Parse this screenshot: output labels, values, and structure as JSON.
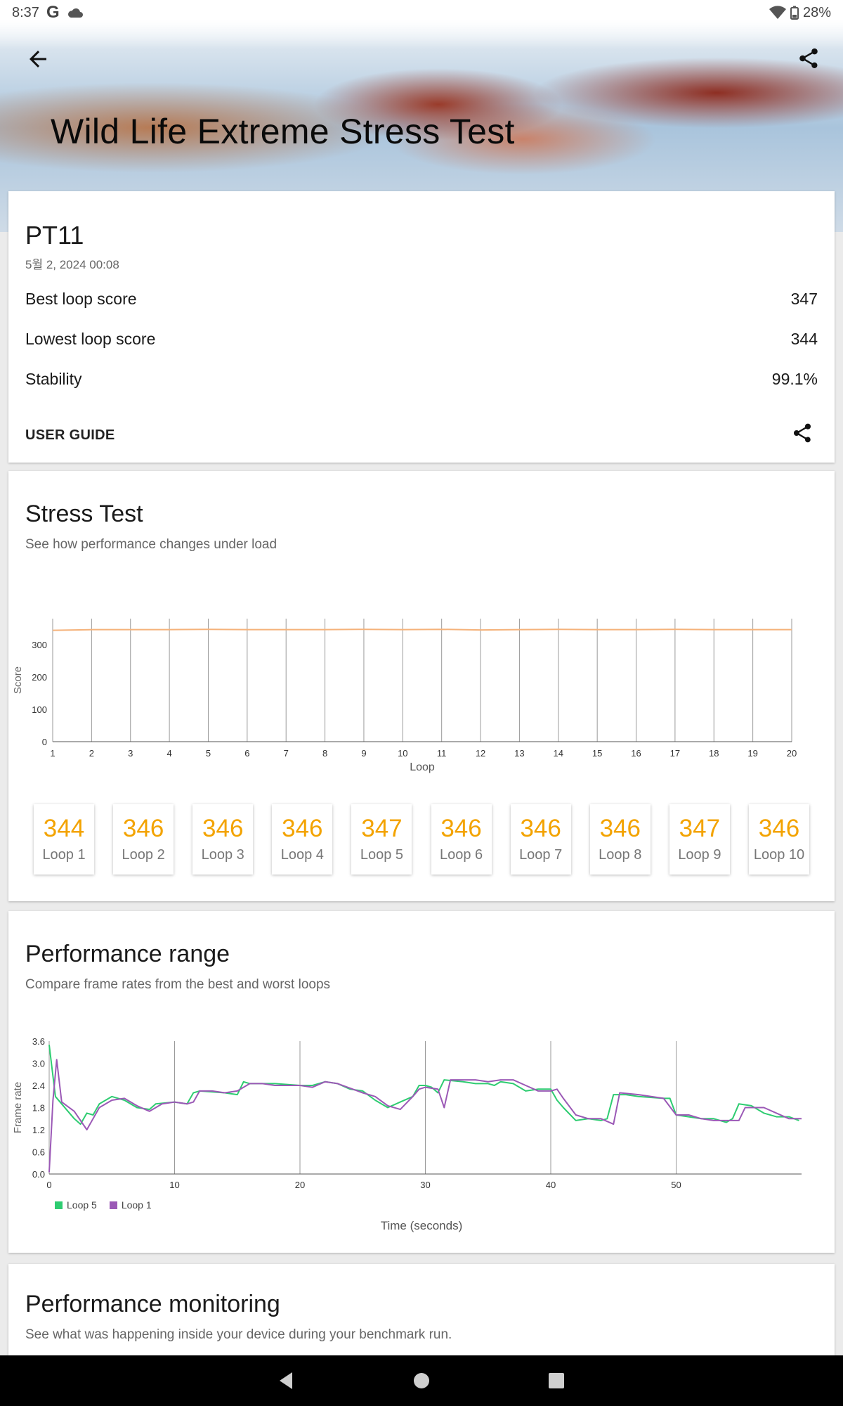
{
  "status_bar": {
    "time": "8:37",
    "battery": "28%"
  },
  "header": {
    "title": "Wild Life Extreme Stress Test"
  },
  "result": {
    "device": "PT11",
    "date": "5월 2, 2024 00:08",
    "stats": [
      {
        "label": "Best loop score",
        "value": "347"
      },
      {
        "label": "Lowest loop score",
        "value": "344"
      },
      {
        "label": "Stability",
        "value": "99.1%"
      }
    ],
    "user_guide": "USER GUIDE"
  },
  "stress_test": {
    "title": "Stress Test",
    "subtitle": "See how performance changes under load",
    "chart_data": {
      "type": "line",
      "xlabel": "Loop",
      "ylabel": "Score",
      "x": [
        1,
        2,
        3,
        4,
        5,
        6,
        7,
        8,
        9,
        10,
        11,
        12,
        13,
        14,
        15,
        16,
        17,
        18,
        19,
        20
      ],
      "xlim": [
        1,
        20
      ],
      "ylim": [
        0,
        380
      ],
      "yticks": [
        0,
        100,
        200,
        300
      ],
      "series": [
        {
          "values": [
            344,
            346,
            346,
            346,
            347,
            346,
            346,
            346,
            347,
            346,
            347,
            345,
            346,
            347,
            346,
            346,
            347,
            346,
            346,
            346
          ],
          "color": "#f5b27a"
        }
      ],
      "grid": "vertical"
    },
    "tiles": [
      {
        "score": "344",
        "label": "Loop 1"
      },
      {
        "score": "346",
        "label": "Loop 2"
      },
      {
        "score": "346",
        "label": "Loop 3"
      },
      {
        "score": "346",
        "label": "Loop 4"
      },
      {
        "score": "347",
        "label": "Loop 5"
      },
      {
        "score": "346",
        "label": "Loop 6"
      },
      {
        "score": "346",
        "label": "Loop 7"
      },
      {
        "score": "346",
        "label": "Loop 8"
      },
      {
        "score": "347",
        "label": "Loop 9"
      },
      {
        "score": "346",
        "label": "Loop 10"
      }
    ]
  },
  "performance_range": {
    "title": "Performance range",
    "subtitle": "Compare frame rates from the best and worst loops",
    "chart_data": {
      "type": "line",
      "xlabel": "Time (seconds)",
      "ylabel": "Frame rate",
      "xlim": [
        0,
        60
      ],
      "ylim": [
        0,
        3.6
      ],
      "xticks": [
        0,
        10,
        20,
        30,
        40,
        50
      ],
      "yticks": [
        0.0,
        0.6,
        1.2,
        1.8,
        2.4,
        3.0,
        3.6
      ],
      "legend": "bottom-left",
      "grid": "vertical",
      "series": [
        {
          "name": "Loop 5",
          "color": "#2ecc71",
          "points": [
            [
              0,
              3.5
            ],
            [
              0.5,
              2.1
            ],
            [
              1,
              1.9
            ],
            [
              2,
              1.5
            ],
            [
              2.5,
              1.35
            ],
            [
              3,
              1.65
            ],
            [
              3.5,
              1.6
            ],
            [
              4,
              1.9
            ],
            [
              5,
              2.1
            ],
            [
              6,
              2.0
            ],
            [
              7,
              1.8
            ],
            [
              8,
              1.75
            ],
            [
              8.5,
              1.9
            ],
            [
              10,
              1.95
            ],
            [
              11,
              1.9
            ],
            [
              11.5,
              2.2
            ],
            [
              12,
              2.25
            ],
            [
              14,
              2.2
            ],
            [
              15,
              2.15
            ],
            [
              15.5,
              2.5
            ],
            [
              16,
              2.45
            ],
            [
              18,
              2.45
            ],
            [
              20,
              2.4
            ],
            [
              21,
              2.4
            ],
            [
              22,
              2.5
            ],
            [
              23,
              2.45
            ],
            [
              24,
              2.3
            ],
            [
              25,
              2.25
            ],
            [
              26,
              2.0
            ],
            [
              27,
              1.8
            ],
            [
              28,
              1.95
            ],
            [
              29,
              2.1
            ],
            [
              29.5,
              2.4
            ],
            [
              30,
              2.4
            ],
            [
              30.5,
              2.35
            ],
            [
              31,
              2.2
            ],
            [
              31.5,
              2.55
            ],
            [
              33,
              2.5
            ],
            [
              34,
              2.45
            ],
            [
              35,
              2.45
            ],
            [
              35.5,
              2.4
            ],
            [
              36,
              2.5
            ],
            [
              37,
              2.45
            ],
            [
              38,
              2.25
            ],
            [
              39,
              2.3
            ],
            [
              40,
              2.3
            ],
            [
              40.5,
              2.0
            ],
            [
              41,
              1.8
            ],
            [
              42,
              1.45
            ],
            [
              43,
              1.5
            ],
            [
              44,
              1.45
            ],
            [
              44.5,
              1.5
            ],
            [
              45,
              2.15
            ],
            [
              46,
              2.15
            ],
            [
              47,
              2.1
            ],
            [
              49,
              2.05
            ],
            [
              49.5,
              2.05
            ],
            [
              50,
              1.6
            ],
            [
              51,
              1.55
            ],
            [
              52,
              1.5
            ],
            [
              53,
              1.5
            ],
            [
              54,
              1.4
            ],
            [
              54.5,
              1.5
            ],
            [
              55,
              1.9
            ],
            [
              56,
              1.85
            ],
            [
              57,
              1.65
            ],
            [
              58,
              1.55
            ],
            [
              59,
              1.55
            ],
            [
              59.8,
              1.45
            ]
          ]
        },
        {
          "name": "Loop 1",
          "color": "#9b59b6",
          "points": [
            [
              0,
              0.05
            ],
            [
              0.3,
              2.0
            ],
            [
              0.6,
              3.1
            ],
            [
              1,
              1.95
            ],
            [
              2,
              1.7
            ],
            [
              3,
              1.2
            ],
            [
              4,
              1.8
            ],
            [
              5,
              2.0
            ],
            [
              6,
              2.05
            ],
            [
              7,
              1.85
            ],
            [
              8,
              1.7
            ],
            [
              9,
              1.9
            ],
            [
              10,
              1.95
            ],
            [
              11,
              1.9
            ],
            [
              11.5,
              1.95
            ],
            [
              12,
              2.25
            ],
            [
              13,
              2.25
            ],
            [
              14,
              2.2
            ],
            [
              15,
              2.25
            ],
            [
              16,
              2.45
            ],
            [
              17,
              2.45
            ],
            [
              18,
              2.4
            ],
            [
              20,
              2.4
            ],
            [
              21,
              2.35
            ],
            [
              22,
              2.5
            ],
            [
              23,
              2.45
            ],
            [
              25,
              2.2
            ],
            [
              26,
              2.1
            ],
            [
              27,
              1.85
            ],
            [
              28,
              1.75
            ],
            [
              29,
              2.1
            ],
            [
              29.5,
              2.3
            ],
            [
              30,
              2.35
            ],
            [
              31,
              2.3
            ],
            [
              31.5,
              1.8
            ],
            [
              32,
              2.55
            ],
            [
              34,
              2.55
            ],
            [
              35,
              2.5
            ],
            [
              36,
              2.55
            ],
            [
              37,
              2.55
            ],
            [
              38,
              2.4
            ],
            [
              39,
              2.25
            ],
            [
              40,
              2.25
            ],
            [
              40.5,
              2.3
            ],
            [
              41,
              2.05
            ],
            [
              42,
              1.6
            ],
            [
              43,
              1.5
            ],
            [
              44,
              1.5
            ],
            [
              45,
              1.35
            ],
            [
              45.5,
              2.2
            ],
            [
              47,
              2.15
            ],
            [
              48,
              2.1
            ],
            [
              49,
              2.05
            ],
            [
              50,
              1.6
            ],
            [
              51,
              1.6
            ],
            [
              52,
              1.5
            ],
            [
              53,
              1.45
            ],
            [
              54,
              1.45
            ],
            [
              55,
              1.45
            ],
            [
              55.5,
              1.8
            ],
            [
              56,
              1.8
            ],
            [
              57,
              1.8
            ],
            [
              58,
              1.65
            ],
            [
              59,
              1.5
            ],
            [
              60,
              1.5
            ]
          ]
        }
      ]
    }
  },
  "performance_monitoring": {
    "title": "Performance monitoring",
    "subtitle": "See what was happening inside your device during your benchmark run."
  }
}
